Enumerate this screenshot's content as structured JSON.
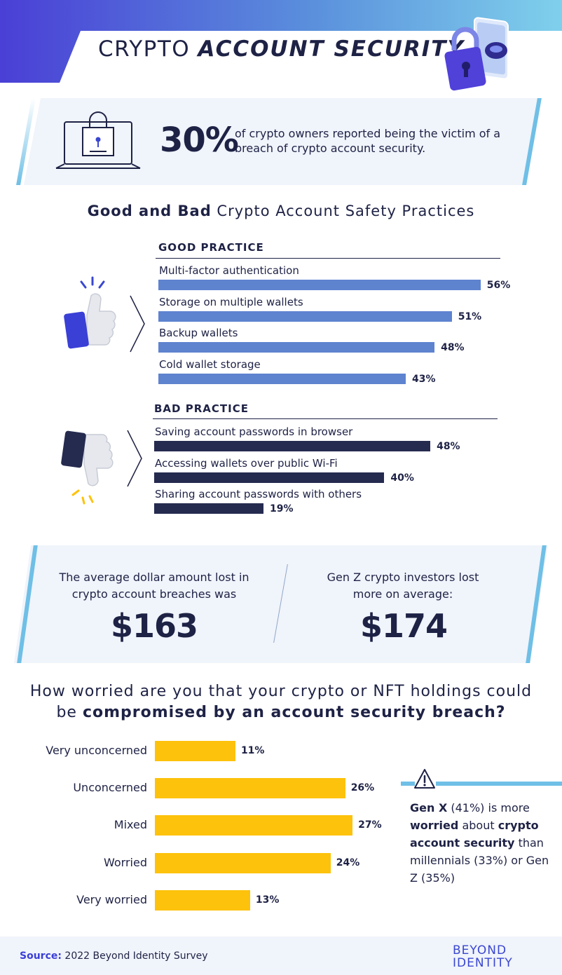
{
  "header": {
    "title_light": "CRYPTO",
    "title_bold": "ACCOUNT SECURITY"
  },
  "stat": {
    "percent": "30%",
    "text": "of crypto owners reported being the victim of a breach of crypto account security."
  },
  "practices": {
    "title_bold": "Good and Bad",
    "title_light": "Crypto Account Safety Practices"
  },
  "colors": {
    "good_bar": "#5e83cf",
    "bad_bar": "#252b4f",
    "worry_bar": "#fdc20b",
    "accent": "#6fbfe6",
    "brand": "#3a47d0"
  },
  "loss": {
    "avg_text": "The average dollar amount lost in crypto account breaches was",
    "avg_amount": "$163",
    "genz_text": "Gen Z crypto investors lost more on average:",
    "genz_amount": "$174"
  },
  "question": {
    "line1": "How worried are you that your crypto or NFT holdings could",
    "line2_light": "be",
    "line2_bold": "compromised by an account security breach?"
  },
  "callout": {
    "p1_bold": "Gen X",
    "p2": "(41%) is more",
    "p3_bold": "worried",
    "p4": "about",
    "p5_bold": "crypto account security",
    "p6": "than millennials (33%) or Gen Z (35%)"
  },
  "footer": {
    "source_label": "Source:",
    "source_text": "2022 Beyond Identity Survey",
    "logo_line1": "BEYOND",
    "logo_line2": "IDENTITY"
  },
  "chart_data": [
    {
      "type": "bar",
      "title": "GOOD PRACTICE",
      "categories": [
        "Multi-factor authentication",
        "Storage on multiple wallets",
        "Backup wallets",
        "Cold wallet storage"
      ],
      "values": [
        56,
        51,
        48,
        43
      ],
      "value_labels": [
        "56%",
        "51%",
        "48%",
        "43%"
      ],
      "orientation": "horizontal",
      "grid": false
    },
    {
      "type": "bar",
      "title": "BAD PRACTICE",
      "categories": [
        "Saving account passwords in browser",
        "Accessing wallets over public Wi-Fi",
        "Sharing account passwords with others"
      ],
      "values": [
        48,
        40,
        19
      ],
      "value_labels": [
        "48%",
        "40%",
        "19%"
      ],
      "orientation": "horizontal",
      "grid": false
    },
    {
      "type": "bar",
      "categories": [
        "Very unconcerned",
        "Unconcerned",
        "Mixed",
        "Worried",
        "Very worried"
      ],
      "values": [
        11,
        26,
        27,
        24,
        13
      ],
      "value_labels": [
        "11%",
        "26%",
        "27%",
        "24%",
        "13%"
      ],
      "orientation": "horizontal",
      "grid": false
    }
  ]
}
